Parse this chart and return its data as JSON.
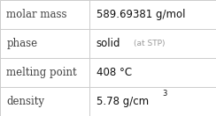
{
  "rows": [
    {
      "label": "molar mass",
      "value": "589.69381 g/mol",
      "annotation": null,
      "superscript": null
    },
    {
      "label": "phase",
      "value": "solid",
      "annotation": "(at STP)",
      "superscript": null
    },
    {
      "label": "melting point",
      "value": "408 °C",
      "annotation": null,
      "superscript": null
    },
    {
      "label": "density",
      "value": "5.78 g/cm",
      "annotation": null,
      "superscript": "3"
    }
  ],
  "background_color": "#ffffff",
  "border_color": "#cccccc",
  "label_color": "#404040",
  "value_color": "#111111",
  "annotation_color": "#999999",
  "label_fontsize": 8.5,
  "value_fontsize": 8.5,
  "annotation_fontsize": 6.5,
  "superscript_fontsize": 6,
  "col_split": 0.415
}
